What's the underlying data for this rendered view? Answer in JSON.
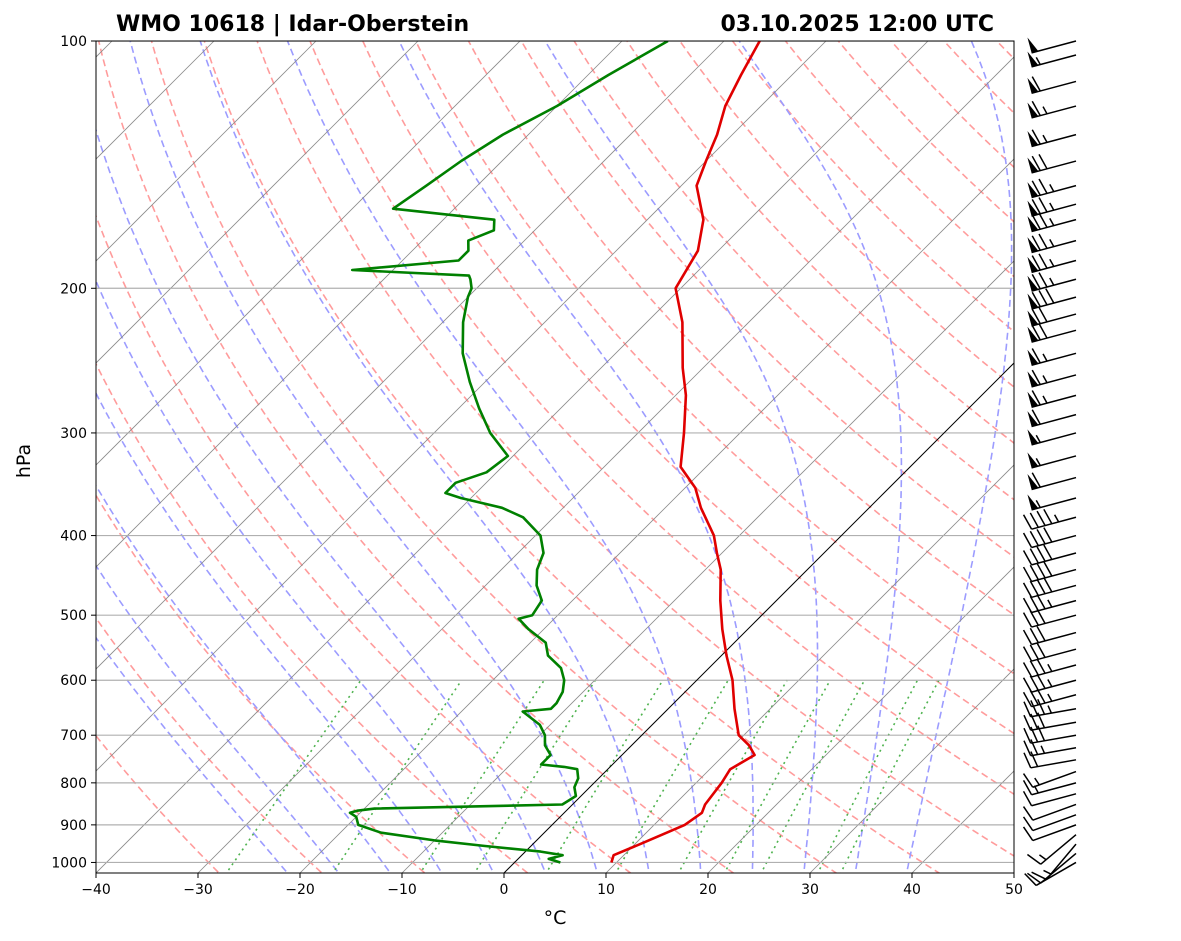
{
  "title_left": "WMO 10618 | Idar-Oberstein",
  "title_right": "03.10.2025 12:00 UTC",
  "chart_data": {
    "type": "line",
    "diagram": "skew-T log-P",
    "xlabel": "°C",
    "ylabel": "hPa",
    "xlim": [
      -40,
      50
    ],
    "ylim": [
      1030,
      100
    ],
    "x_ticks": [
      "−40",
      "−30",
      "−20",
      "−10",
      "0",
      "10",
      "20",
      "30",
      "40",
      "50"
    ],
    "y_ticks": [
      "100",
      "200",
      "300",
      "400",
      "500",
      "600",
      "700",
      "800",
      "900",
      "1000"
    ],
    "y_scale": "log",
    "grid": true,
    "colors": {
      "temperature": "#e00000",
      "dewpoint": "#008000",
      "dry_adiabats": "#ff9c9c",
      "moist_adiabats": "#9c9cff",
      "mixing_ratio": "#4fb34f",
      "isotherms": "#8a8a8a",
      "zero_isotherm": "#000000",
      "wind_barbs": "#000000"
    },
    "series": [
      {
        "key": "temperature",
        "pressure": [
          1000,
          980,
          950,
          920,
          900,
          870,
          850,
          800,
          770,
          740,
          720,
          700,
          650,
          600,
          560,
          520,
          480,
          440,
          420,
          400,
          370,
          350,
          330,
          300,
          270,
          250,
          220,
          200,
          180,
          165,
          150,
          140,
          130,
          120,
          110,
          100
        ],
        "values": [
          9.5,
          9.0,
          10.5,
          12.0,
          13.0,
          13.5,
          13.0,
          12.5,
          12.0,
          13.0,
          11.5,
          9.5,
          6.5,
          3.5,
          0.5,
          -2.5,
          -5.5,
          -8.5,
          -10.5,
          -12.5,
          -16.5,
          -19.0,
          -22.5,
          -25.5,
          -29.0,
          -32.0,
          -36.5,
          -40.5,
          -42.0,
          -44.5,
          -48.5,
          -50.0,
          -51.5,
          -53.5,
          -55.0,
          -56.5
        ]
      },
      {
        "key": "dewpoint",
        "pressure": [
          1000,
          990,
          980,
          970,
          955,
          940,
          920,
          900,
          880,
          870,
          865,
          860,
          850,
          830,
          810,
          790,
          770,
          765,
          760,
          740,
          720,
          700,
          680,
          655,
          650,
          640,
          620,
          600,
          580,
          560,
          540,
          520,
          505,
          500,
          480,
          460,
          440,
          420,
          400,
          380,
          370,
          360,
          355,
          345,
          335,
          320,
          300,
          280,
          260,
          240,
          220,
          205,
          200,
          195,
          193,
          190,
          185,
          180,
          175,
          170,
          165,
          160,
          150,
          140,
          130,
          120,
          110,
          100
        ],
        "values": [
          4.5,
          3.0,
          4.0,
          1.5,
          -4.5,
          -10.0,
          -16.0,
          -19.0,
          -20.0,
          -21.0,
          -20.5,
          -19.0,
          -1.0,
          -0.5,
          -1.5,
          -2.0,
          -3.0,
          -4.5,
          -7.0,
          -7.0,
          -8.5,
          -9.5,
          -11.0,
          -14.0,
          -11.5,
          -11.5,
          -12.0,
          -13.0,
          -14.5,
          -17.0,
          -18.5,
          -21.5,
          -23.5,
          -22.5,
          -23.0,
          -25.0,
          -26.5,
          -27.5,
          -29.5,
          -33.0,
          -36.0,
          -41.0,
          -43.0,
          -43.0,
          -41.0,
          -40.5,
          -44.5,
          -48.0,
          -51.5,
          -55.0,
          -58.0,
          -60.0,
          -60.5,
          -61.5,
          -62.0,
          -74.0,
          -64.5,
          -64.5,
          -65.5,
          -64.0,
          -65.0,
          -76.0,
          -75.0,
          -74.0,
          -72.5,
          -70.0,
          -68.0,
          -65.5
        ]
      }
    ],
    "wind_barbs": {
      "pressure": [
        1000,
        975,
        950,
        925,
        900,
        875,
        850,
        825,
        800,
        775,
        750,
        725,
        700,
        675,
        650,
        625,
        600,
        575,
        550,
        525,
        500,
        480,
        460,
        440,
        420,
        400,
        380,
        360,
        340,
        320,
        300,
        285,
        270,
        255,
        240,
        225,
        215,
        205,
        195,
        185,
        175,
        165,
        158,
        150,
        140,
        130,
        120,
        112,
        104,
        100
      ],
      "direction_deg": [
        240,
        230,
        220,
        230,
        250,
        250,
        250,
        255,
        255,
        250,
        260,
        260,
        260,
        260,
        260,
        255,
        255,
        255,
        255,
        255,
        255,
        255,
        255,
        255,
        255,
        255,
        255,
        255,
        255,
        255,
        255,
        255,
        255,
        255,
        255,
        255,
        255,
        255,
        255,
        255,
        255,
        255,
        255,
        255,
        255,
        255,
        255,
        255,
        255,
        255
      ],
      "speed_kt": [
        10,
        10,
        15,
        15,
        10,
        10,
        10,
        10,
        15,
        15,
        20,
        25,
        30,
        30,
        35,
        35,
        35,
        35,
        30,
        30,
        30,
        35,
        40,
        40,
        40,
        40,
        45,
        55,
        60,
        55,
        55,
        60,
        65,
        65,
        65,
        70,
        70,
        80,
        75,
        75,
        75,
        75,
        75,
        75,
        70,
        65,
        65,
        60,
        55,
        50
      ]
    }
  }
}
